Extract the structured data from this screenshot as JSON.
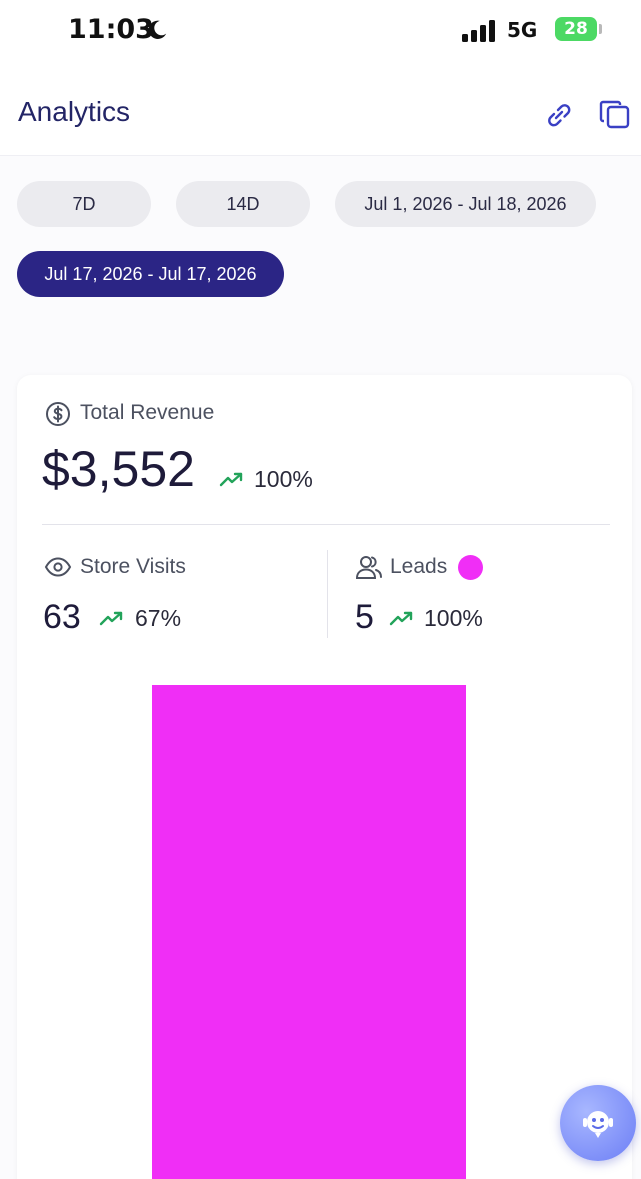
{
  "status_bar": {
    "time": "11:03",
    "network": "5G",
    "battery": "28"
  },
  "header": {
    "title": "Analytics",
    "icons": [
      "link-icon",
      "copy-icon"
    ]
  },
  "filters": [
    {
      "label": "7D",
      "active": false
    },
    {
      "label": "14D",
      "active": false
    },
    {
      "label": "Jul 1, 2026 - Jul 18, 2026",
      "active": false
    },
    {
      "label": "Jul 17, 2026 - Jul 17, 2026",
      "active": true
    }
  ],
  "metrics": {
    "revenue": {
      "label": "Total Revenue",
      "value": "$3,552",
      "change": "100%"
    },
    "visits": {
      "label": "Store Visits",
      "value": "63",
      "change": "67%"
    },
    "leads": {
      "label": "Leads",
      "value": "5",
      "change": "100%"
    }
  },
  "colors": {
    "accent": "#2b2585",
    "leads": "#f02ef6",
    "trend_up": "#22a35a"
  },
  "chart_data": {
    "type": "bar",
    "categories": [
      ""
    ],
    "series": [
      {
        "name": "Leads",
        "values": [
          5
        ]
      }
    ],
    "ylim": [
      0,
      5
    ],
    "grid": false,
    "xlabel": "",
    "ylabel": ""
  }
}
